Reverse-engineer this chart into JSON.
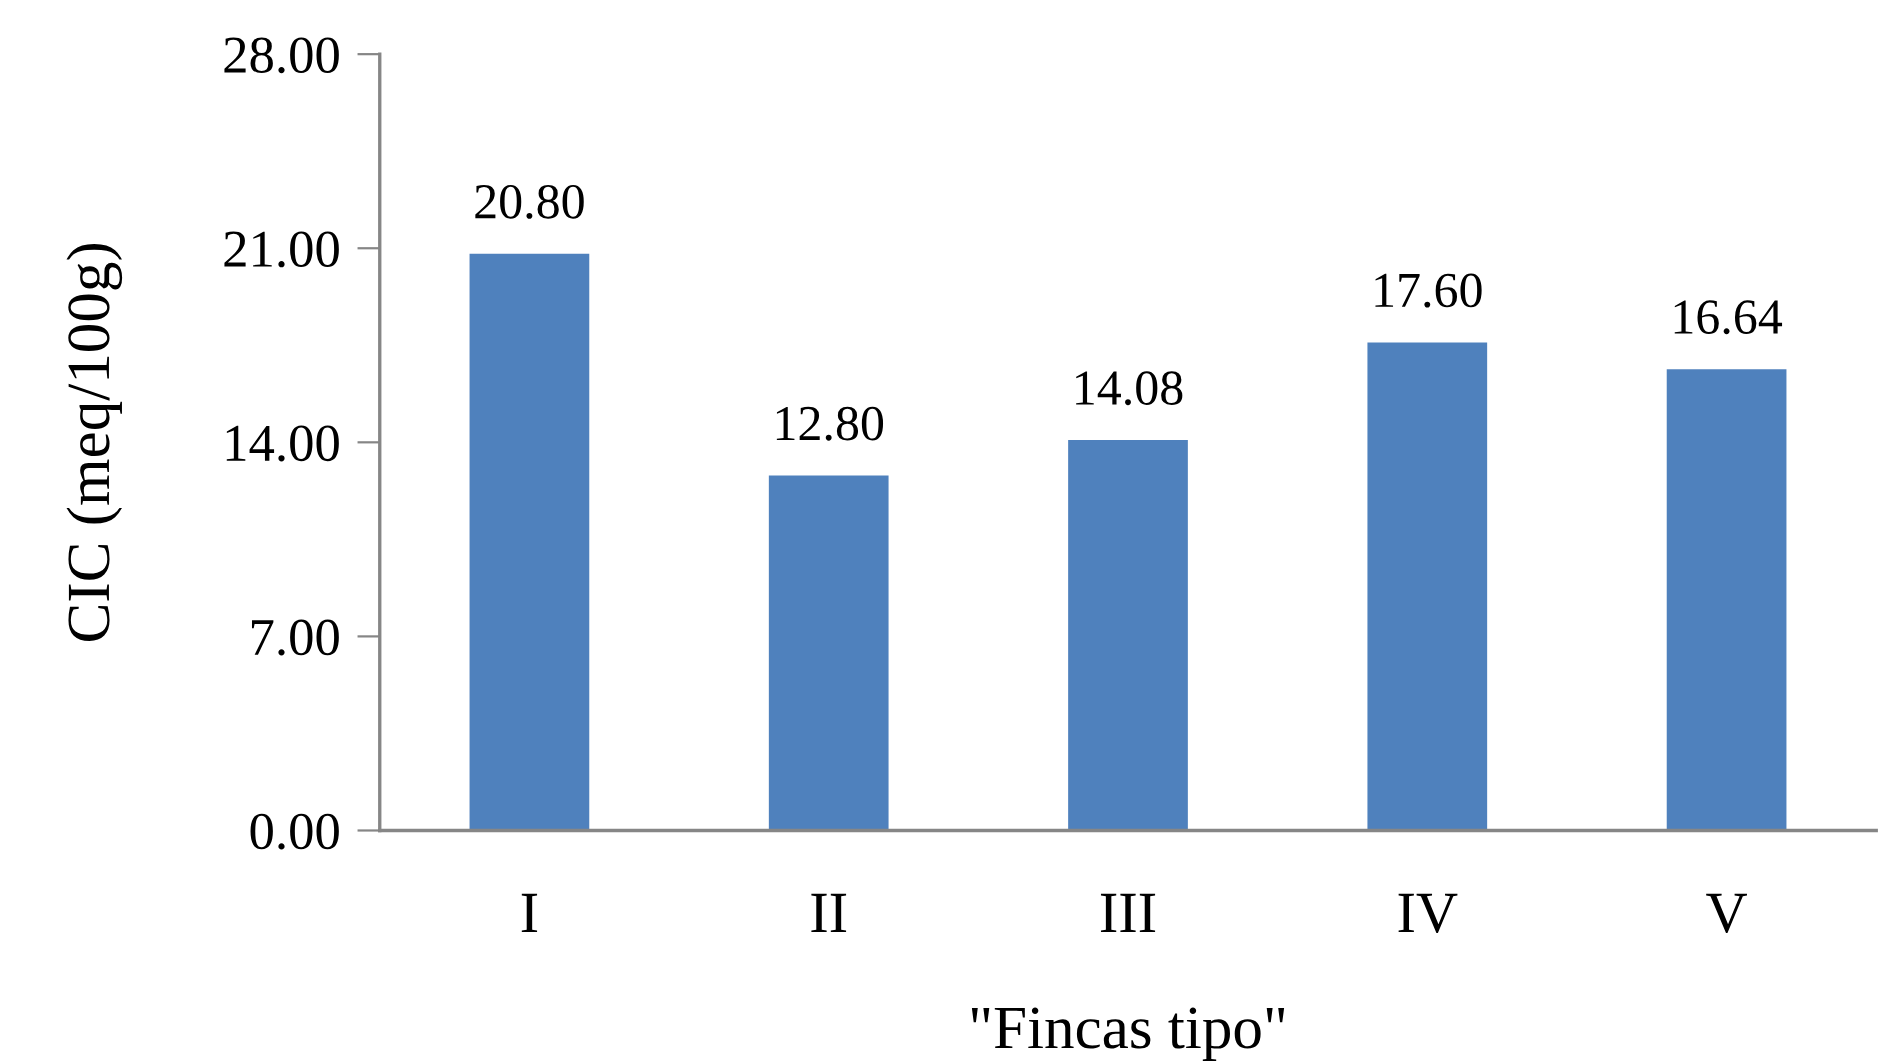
{
  "chart_data": {
    "type": "bar",
    "xlabel": "\"Fincas tipo\"",
    "ylabel": "CIC (meq/100g)",
    "categories": [
      "I",
      "II",
      "III",
      "IV",
      "V"
    ],
    "values": [
      20.8,
      12.8,
      14.08,
      17.6,
      16.64
    ],
    "value_labels": [
      "20.80",
      "12.80",
      "14.08",
      "17.60",
      "16.64"
    ],
    "color": "#4f81bd",
    "ylim": [
      0,
      28
    ],
    "yticks": [
      {
        "value": 0,
        "label": "0.00"
      },
      {
        "value": 7,
        "label": "7.00"
      },
      {
        "value": 14,
        "label": "14.00"
      },
      {
        "value": 21,
        "label": "21.00"
      },
      {
        "value": 28,
        "label": "28.00"
      }
    ],
    "grid": false,
    "legend": false
  }
}
